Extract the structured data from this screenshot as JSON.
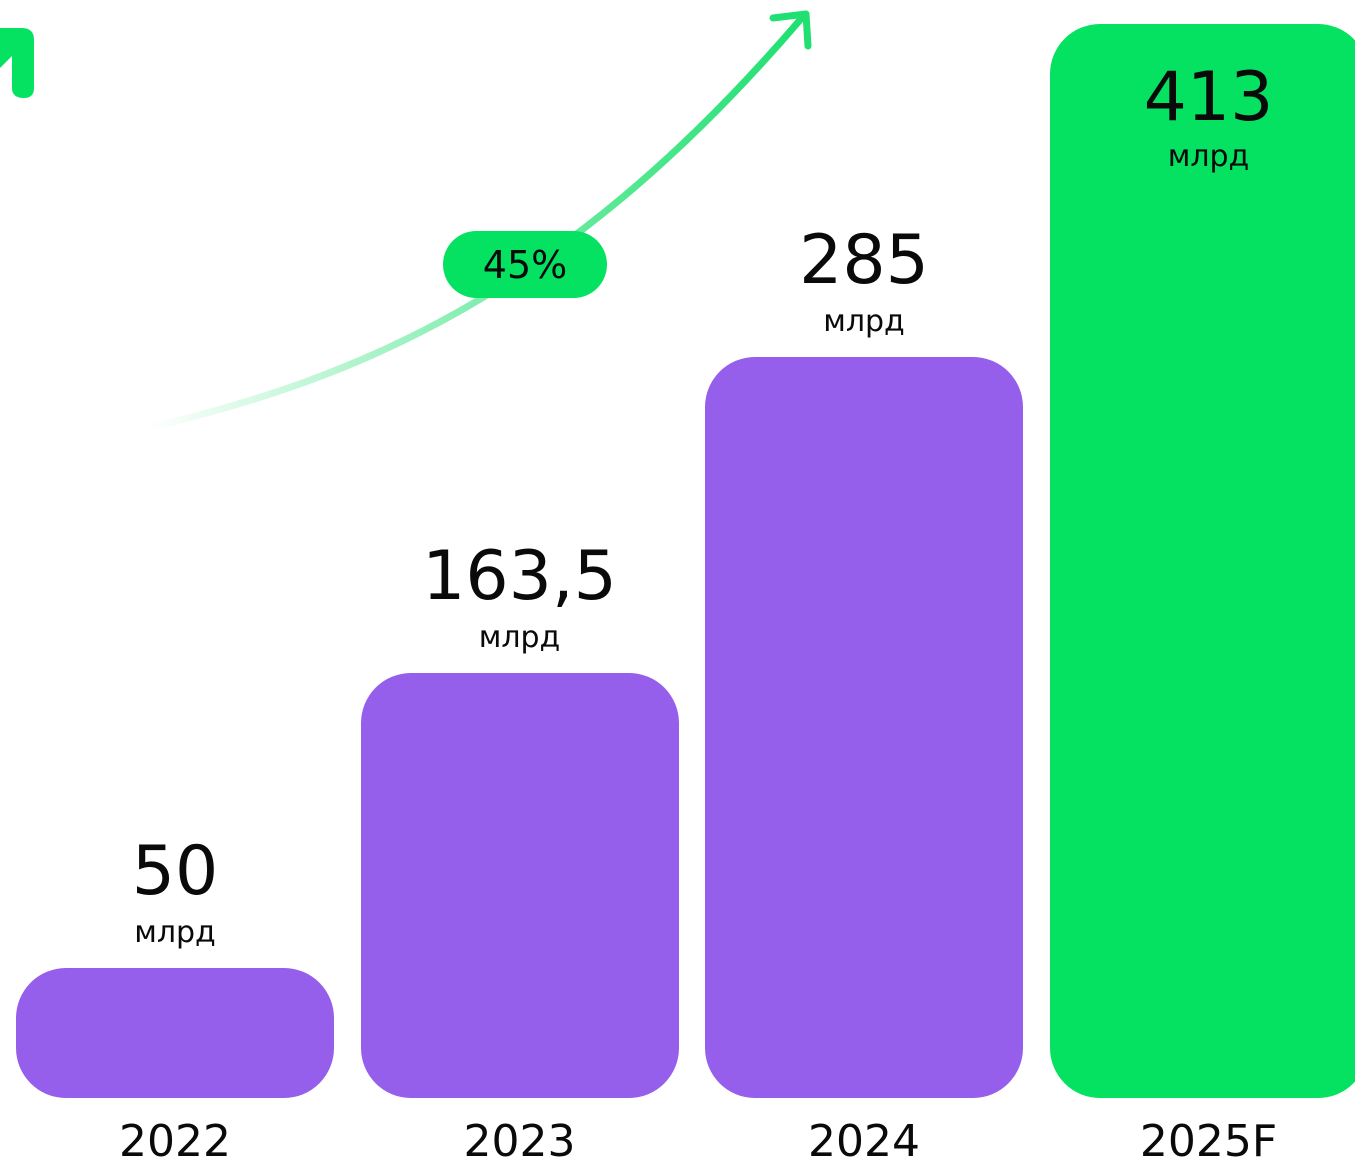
{
  "colors": {
    "bar_actual": "#965FEB",
    "bar_forecast": "#05E161",
    "arrow": "#1FE070",
    "badge": "#05E161",
    "text": "#0A0A0A"
  },
  "icons": {
    "corner": "arrow-up-right-icon",
    "trend": "growth-arrow-icon"
  },
  "chart_data": {
    "type": "bar",
    "categories": [
      "2022",
      "2023",
      "2024",
      "2025F"
    ],
    "values": [
      50,
      163.5,
      285,
      413
    ],
    "value_labels": [
      "50",
      "163,5",
      "285",
      "413"
    ],
    "unit": "млрд",
    "forecast": [
      false,
      false,
      false,
      true
    ],
    "growth_label": "45%",
    "xlabel": "",
    "ylabel": "",
    "grid": false
  }
}
